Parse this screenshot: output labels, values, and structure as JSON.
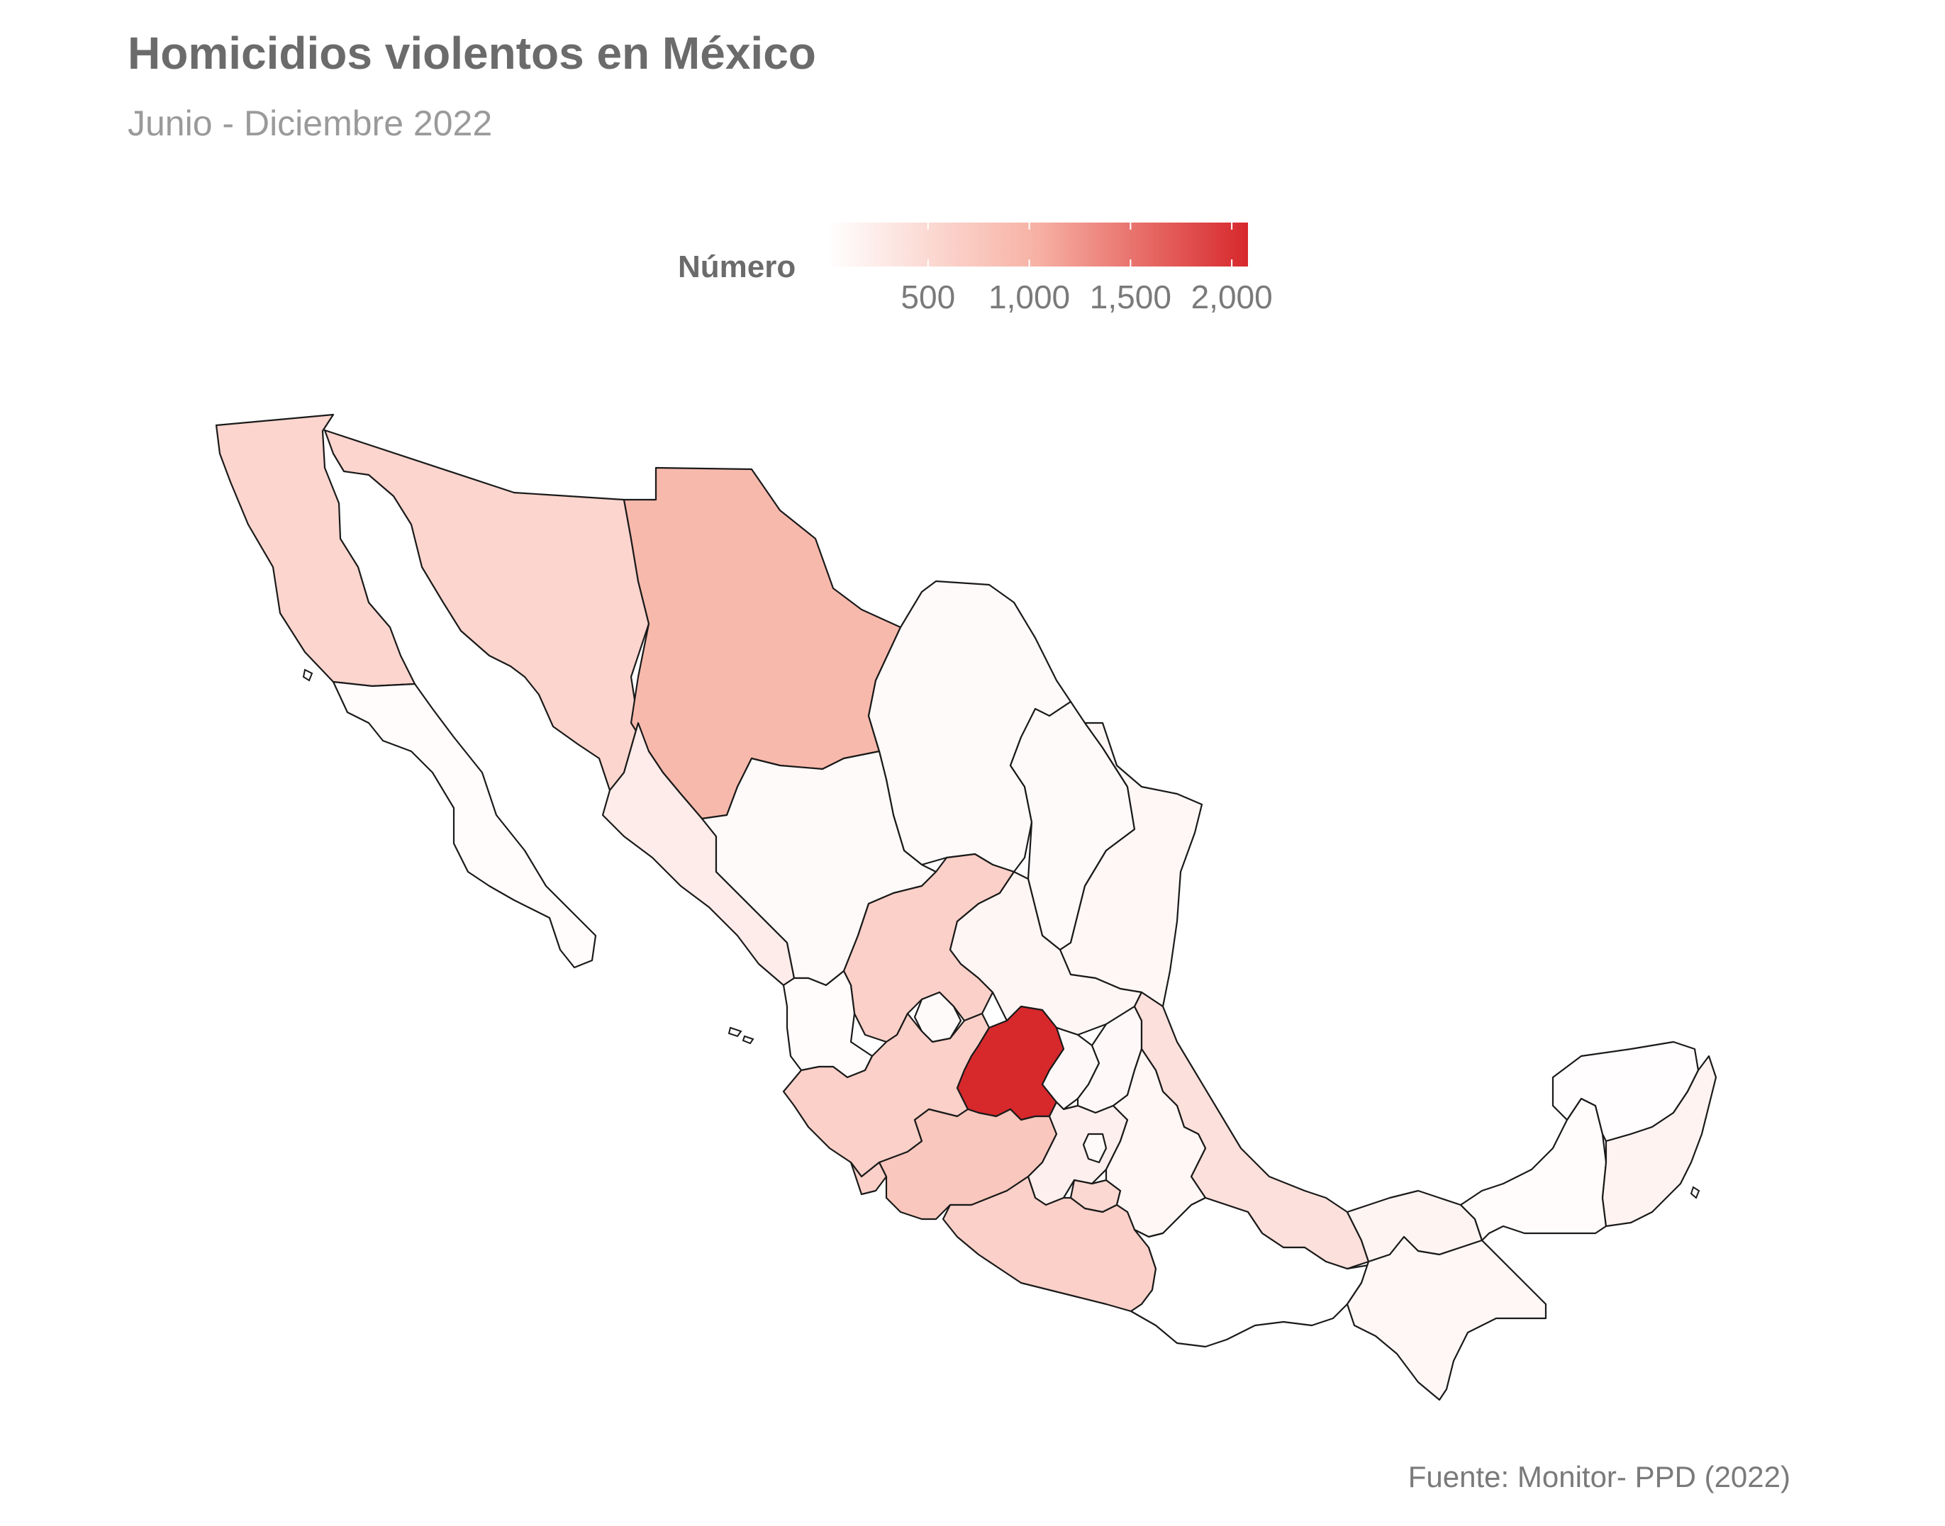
{
  "title": "Homicidios violentos en México",
  "subtitle": "Junio - Diciembre 2022",
  "legend": {
    "title": "Número",
    "ticks": [
      "500",
      "1,000",
      "1,500",
      "2,000"
    ],
    "tick_values": [
      500,
      1000,
      1500,
      2000
    ],
    "range": [
      0,
      2080
    ],
    "color_low": "#ffffff",
    "color_high": "#d7282c"
  },
  "source": "Fuente: Monitor- PPD (2022)",
  "map_data": {
    "type": "choropleth",
    "region": "México",
    "regions": [
      {
        "name": "Baja California",
        "level": 0.27
      },
      {
        "name": "Baja California Sur",
        "level": 0.02
      },
      {
        "name": "Sonora",
        "level": 0.27
      },
      {
        "name": "Chihuahua",
        "level": 0.45
      },
      {
        "name": "Coahuila",
        "level": 0.03
      },
      {
        "name": "Nuevo León",
        "level": 0.03
      },
      {
        "name": "Tamaulipas",
        "level": 0.05
      },
      {
        "name": "Sinaloa",
        "level": 0.12
      },
      {
        "name": "Durango",
        "level": 0.03
      },
      {
        "name": "Zacatecas",
        "level": 0.3
      },
      {
        "name": "San Luis Potosí",
        "level": 0.06
      },
      {
        "name": "Nayarit",
        "level": 0.02
      },
      {
        "name": "Aguascalientes",
        "level": 0.03
      },
      {
        "name": "Jalisco",
        "level": 0.3
      },
      {
        "name": "Guanajuato",
        "level": 1.0
      },
      {
        "name": "Querétaro",
        "level": 0.04
      },
      {
        "name": "Hidalgo",
        "level": 0.04
      },
      {
        "name": "Veracruz",
        "level": 0.2
      },
      {
        "name": "Colima",
        "level": 0.3
      },
      {
        "name": "Michoacán",
        "level": 0.36
      },
      {
        "name": "Estado de México",
        "level": 0.1
      },
      {
        "name": "Ciudad de México",
        "level": 0.03
      },
      {
        "name": "Morelos",
        "level": 0.25
      },
      {
        "name": "Tlaxcala",
        "level": 0.03
      },
      {
        "name": "Puebla",
        "level": 0.05
      },
      {
        "name": "Guerrero",
        "level": 0.3
      },
      {
        "name": "Oaxaca",
        "level": 0.0
      },
      {
        "name": "Tabasco",
        "level": 0.07
      },
      {
        "name": "Chiapas",
        "level": 0.05
      },
      {
        "name": "Campeche",
        "level": 0.02
      },
      {
        "name": "Yucatán",
        "level": 0.01
      },
      {
        "name": "Quintana Roo",
        "level": 0.08
      }
    ]
  }
}
